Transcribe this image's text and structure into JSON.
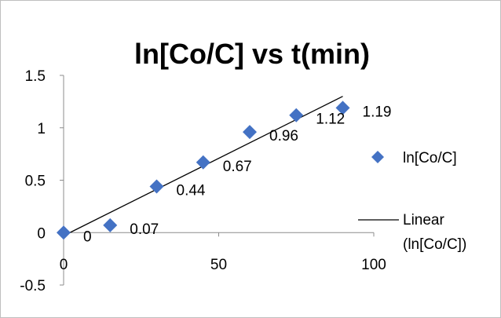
{
  "chart_data": {
    "type": "scatter",
    "title": "ln[Co/C] vs t(min)",
    "xlabel": "",
    "ylabel": "",
    "xlim": [
      0,
      100
    ],
    "ylim": [
      -0.5,
      1.5
    ],
    "x_ticks": [
      "0",
      "50",
      "100"
    ],
    "y_ticks": [
      "-0.5",
      "0",
      "0.5",
      "1",
      "1.5"
    ],
    "series": [
      {
        "name": "ln[Co/C]",
        "x": [
          0,
          15,
          30,
          45,
          60,
          75,
          90
        ],
        "y": [
          0,
          0.07,
          0.44,
          0.67,
          0.96,
          1.12,
          1.19
        ],
        "labels": [
          "0",
          "0.07",
          "0.44",
          "0.67",
          "0.96",
          "1.12",
          "1.19"
        ],
        "color": "#4472c4",
        "marker": "diamond"
      }
    ],
    "trendline": {
      "name_line1": "Linear",
      "name_line2": "(ln[Co/C])",
      "x": [
        0,
        90
      ],
      "y": [
        -0.03,
        1.3
      ],
      "color": "#000000"
    },
    "grid": false,
    "legend_position": "right"
  }
}
